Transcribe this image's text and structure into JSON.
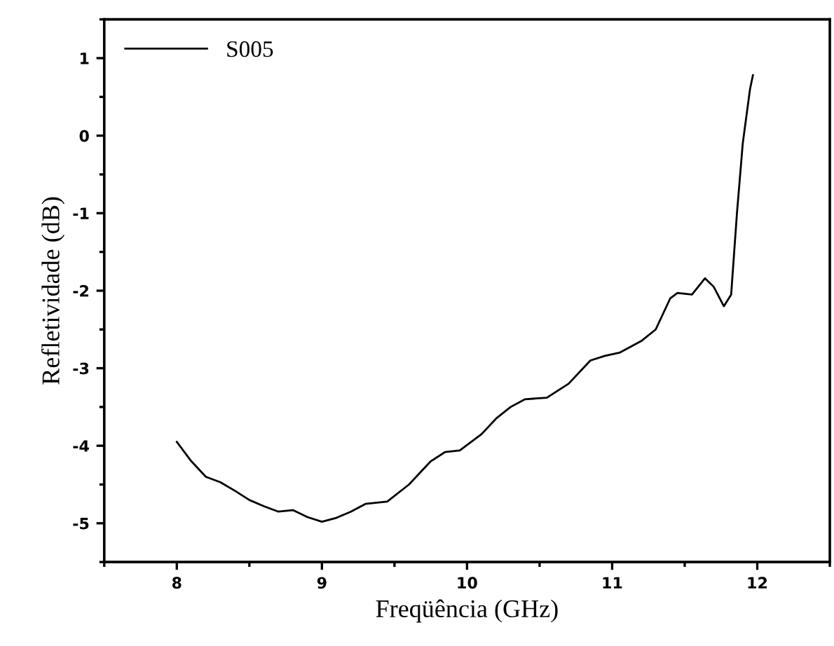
{
  "chart_data": {
    "type": "line",
    "xlabel": "Freqüência (GHz)",
    "ylabel": "Refletividade (dB)",
    "xlim": [
      7.5,
      12.5
    ],
    "xticks": [
      8,
      9,
      10,
      11,
      12
    ],
    "ylim": [
      -5.5,
      1.5
    ],
    "yticks": [
      -5,
      -4,
      -3,
      -2,
      -1,
      0,
      1
    ],
    "legend": "top left",
    "grid": false,
    "x": [
      8.0,
      8.1,
      8.2,
      8.3,
      8.4,
      8.5,
      8.6,
      8.7,
      8.8,
      8.9,
      9.0,
      9.1,
      9.2,
      9.3,
      9.45,
      9.6,
      9.75,
      9.85,
      9.95,
      10.1,
      10.2,
      10.3,
      10.4,
      10.55,
      10.7,
      10.85,
      10.95,
      11.05,
      11.2,
      11.3,
      11.4,
      11.45,
      11.55,
      11.64,
      11.7,
      11.77,
      11.82,
      11.86,
      11.9,
      11.95,
      11.97
    ],
    "series": [
      {
        "name": "S005",
        "color": "#000000",
        "values": [
          -3.95,
          -4.2,
          -4.4,
          -4.47,
          -4.58,
          -4.7,
          -4.78,
          -4.85,
          -4.83,
          -4.92,
          -4.98,
          -4.93,
          -4.85,
          -4.75,
          -4.72,
          -4.5,
          -4.2,
          -4.08,
          -4.06,
          -3.85,
          -3.65,
          -3.5,
          -3.4,
          -3.38,
          -3.2,
          -2.9,
          -2.84,
          -2.8,
          -2.65,
          -2.5,
          -2.1,
          -2.03,
          -2.05,
          -1.84,
          -1.95,
          -2.2,
          -2.05,
          -1.0,
          -0.1,
          0.6,
          0.78
        ]
      }
    ]
  }
}
